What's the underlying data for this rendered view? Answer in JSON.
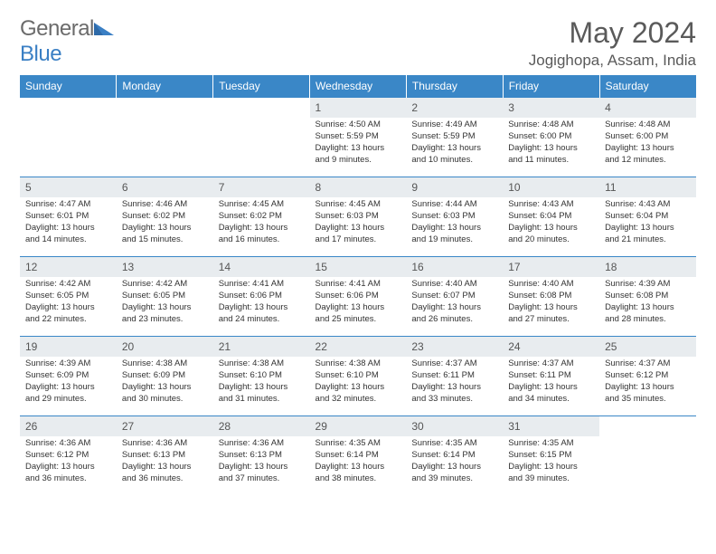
{
  "brand": {
    "name_left": "General",
    "name_right": "Blue"
  },
  "title": "May 2024",
  "location": "Jogighopa, Assam, India",
  "colors": {
    "header_bg": "#3a87c7",
    "header_text": "#ffffff",
    "daynum_bg": "#e8ecef",
    "text": "#333333",
    "row_border": "#3a87c7",
    "brand_gray": "#6b6b6b",
    "brand_blue": "#3a7fc4"
  },
  "weekdays": [
    "Sunday",
    "Monday",
    "Tuesday",
    "Wednesday",
    "Thursday",
    "Friday",
    "Saturday"
  ],
  "weeks": [
    [
      {
        "n": "",
        "sr": "",
        "ss": "",
        "dl": ""
      },
      {
        "n": "",
        "sr": "",
        "ss": "",
        "dl": ""
      },
      {
        "n": "",
        "sr": "",
        "ss": "",
        "dl": ""
      },
      {
        "n": "1",
        "sr": "Sunrise: 4:50 AM",
        "ss": "Sunset: 5:59 PM",
        "dl": "Daylight: 13 hours and 9 minutes."
      },
      {
        "n": "2",
        "sr": "Sunrise: 4:49 AM",
        "ss": "Sunset: 5:59 PM",
        "dl": "Daylight: 13 hours and 10 minutes."
      },
      {
        "n": "3",
        "sr": "Sunrise: 4:48 AM",
        "ss": "Sunset: 6:00 PM",
        "dl": "Daylight: 13 hours and 11 minutes."
      },
      {
        "n": "4",
        "sr": "Sunrise: 4:48 AM",
        "ss": "Sunset: 6:00 PM",
        "dl": "Daylight: 13 hours and 12 minutes."
      }
    ],
    [
      {
        "n": "5",
        "sr": "Sunrise: 4:47 AM",
        "ss": "Sunset: 6:01 PM",
        "dl": "Daylight: 13 hours and 14 minutes."
      },
      {
        "n": "6",
        "sr": "Sunrise: 4:46 AM",
        "ss": "Sunset: 6:02 PM",
        "dl": "Daylight: 13 hours and 15 minutes."
      },
      {
        "n": "7",
        "sr": "Sunrise: 4:45 AM",
        "ss": "Sunset: 6:02 PM",
        "dl": "Daylight: 13 hours and 16 minutes."
      },
      {
        "n": "8",
        "sr": "Sunrise: 4:45 AM",
        "ss": "Sunset: 6:03 PM",
        "dl": "Daylight: 13 hours and 17 minutes."
      },
      {
        "n": "9",
        "sr": "Sunrise: 4:44 AM",
        "ss": "Sunset: 6:03 PM",
        "dl": "Daylight: 13 hours and 19 minutes."
      },
      {
        "n": "10",
        "sr": "Sunrise: 4:43 AM",
        "ss": "Sunset: 6:04 PM",
        "dl": "Daylight: 13 hours and 20 minutes."
      },
      {
        "n": "11",
        "sr": "Sunrise: 4:43 AM",
        "ss": "Sunset: 6:04 PM",
        "dl": "Daylight: 13 hours and 21 minutes."
      }
    ],
    [
      {
        "n": "12",
        "sr": "Sunrise: 4:42 AM",
        "ss": "Sunset: 6:05 PM",
        "dl": "Daylight: 13 hours and 22 minutes."
      },
      {
        "n": "13",
        "sr": "Sunrise: 4:42 AM",
        "ss": "Sunset: 6:05 PM",
        "dl": "Daylight: 13 hours and 23 minutes."
      },
      {
        "n": "14",
        "sr": "Sunrise: 4:41 AM",
        "ss": "Sunset: 6:06 PM",
        "dl": "Daylight: 13 hours and 24 minutes."
      },
      {
        "n": "15",
        "sr": "Sunrise: 4:41 AM",
        "ss": "Sunset: 6:06 PM",
        "dl": "Daylight: 13 hours and 25 minutes."
      },
      {
        "n": "16",
        "sr": "Sunrise: 4:40 AM",
        "ss": "Sunset: 6:07 PM",
        "dl": "Daylight: 13 hours and 26 minutes."
      },
      {
        "n": "17",
        "sr": "Sunrise: 4:40 AM",
        "ss": "Sunset: 6:08 PM",
        "dl": "Daylight: 13 hours and 27 minutes."
      },
      {
        "n": "18",
        "sr": "Sunrise: 4:39 AM",
        "ss": "Sunset: 6:08 PM",
        "dl": "Daylight: 13 hours and 28 minutes."
      }
    ],
    [
      {
        "n": "19",
        "sr": "Sunrise: 4:39 AM",
        "ss": "Sunset: 6:09 PM",
        "dl": "Daylight: 13 hours and 29 minutes."
      },
      {
        "n": "20",
        "sr": "Sunrise: 4:38 AM",
        "ss": "Sunset: 6:09 PM",
        "dl": "Daylight: 13 hours and 30 minutes."
      },
      {
        "n": "21",
        "sr": "Sunrise: 4:38 AM",
        "ss": "Sunset: 6:10 PM",
        "dl": "Daylight: 13 hours and 31 minutes."
      },
      {
        "n": "22",
        "sr": "Sunrise: 4:38 AM",
        "ss": "Sunset: 6:10 PM",
        "dl": "Daylight: 13 hours and 32 minutes."
      },
      {
        "n": "23",
        "sr": "Sunrise: 4:37 AM",
        "ss": "Sunset: 6:11 PM",
        "dl": "Daylight: 13 hours and 33 minutes."
      },
      {
        "n": "24",
        "sr": "Sunrise: 4:37 AM",
        "ss": "Sunset: 6:11 PM",
        "dl": "Daylight: 13 hours and 34 minutes."
      },
      {
        "n": "25",
        "sr": "Sunrise: 4:37 AM",
        "ss": "Sunset: 6:12 PM",
        "dl": "Daylight: 13 hours and 35 minutes."
      }
    ],
    [
      {
        "n": "26",
        "sr": "Sunrise: 4:36 AM",
        "ss": "Sunset: 6:12 PM",
        "dl": "Daylight: 13 hours and 36 minutes."
      },
      {
        "n": "27",
        "sr": "Sunrise: 4:36 AM",
        "ss": "Sunset: 6:13 PM",
        "dl": "Daylight: 13 hours and 36 minutes."
      },
      {
        "n": "28",
        "sr": "Sunrise: 4:36 AM",
        "ss": "Sunset: 6:13 PM",
        "dl": "Daylight: 13 hours and 37 minutes."
      },
      {
        "n": "29",
        "sr": "Sunrise: 4:35 AM",
        "ss": "Sunset: 6:14 PM",
        "dl": "Daylight: 13 hours and 38 minutes."
      },
      {
        "n": "30",
        "sr": "Sunrise: 4:35 AM",
        "ss": "Sunset: 6:14 PM",
        "dl": "Daylight: 13 hours and 39 minutes."
      },
      {
        "n": "31",
        "sr": "Sunrise: 4:35 AM",
        "ss": "Sunset: 6:15 PM",
        "dl": "Daylight: 13 hours and 39 minutes."
      },
      {
        "n": "",
        "sr": "",
        "ss": "",
        "dl": ""
      }
    ]
  ]
}
